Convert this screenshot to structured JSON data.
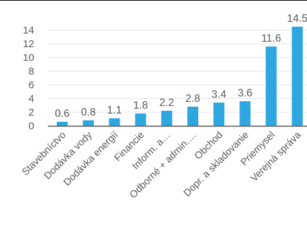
{
  "chart_data": {
    "type": "bar",
    "categories": [
      "Stavebníctvo",
      "Dodávka vody",
      "Dodávka energií",
      "Financie",
      "Inform. a…",
      "Odborné + admin.…",
      "Obchod",
      "Dopr. a skladovanie",
      "Priemysel",
      "Verejná správa"
    ],
    "values": [
      0.6,
      0.8,
      1.1,
      1.8,
      2.2,
      2.8,
      3.4,
      3.6,
      11.6,
      14.5
    ],
    "value_labels": [
      "0.6",
      "0.8",
      "1.1",
      "1.8",
      "2.2",
      "2.8",
      "3.4",
      "3.6",
      "11.6",
      "14.5"
    ],
    "y_ticks": [
      0,
      2,
      4,
      6,
      8,
      10,
      12,
      14
    ],
    "ylim": [
      0,
      15
    ],
    "grid": true,
    "colors": {
      "bar": "#2ea6e0",
      "axis": "#595959",
      "grid": "#e3e3e3",
      "text": "#595959"
    }
  }
}
